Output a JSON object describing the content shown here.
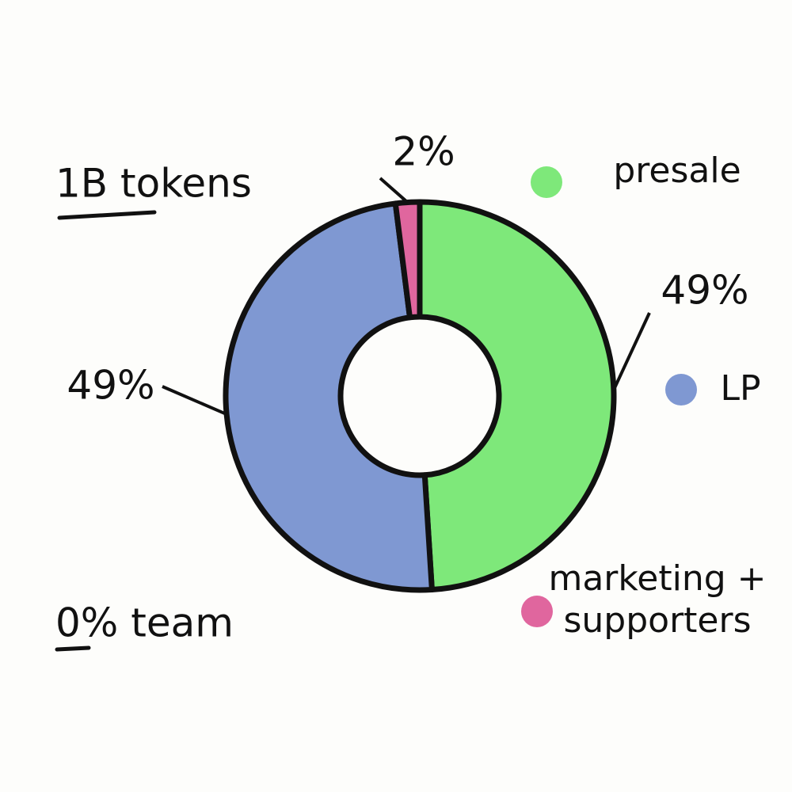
{
  "chart_data": {
    "type": "pie",
    "categories": [
      "presale",
      "LP",
      "marketing + supporters"
    ],
    "values": [
      49,
      49,
      2
    ],
    "value_labels": [
      "49%",
      "49%",
      "2%"
    ],
    "colors": [
      "#7ee87a",
      "#7f98d2",
      "#e0669e"
    ],
    "annotations": [
      "1B tokens",
      "0% team"
    ]
  }
}
